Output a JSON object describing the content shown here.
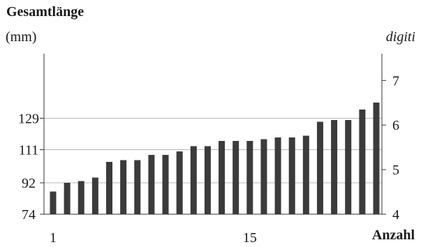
{
  "chart_data": {
    "type": "bar",
    "title": "Gesamtlänge",
    "ylabel": "(mm)",
    "y2label": "digiti",
    "xlabel": "Anzahl",
    "ylim": [
      74,
      166
    ],
    "y_ticks": [
      74,
      92,
      111,
      129
    ],
    "y2lim": [
      4,
      7.6
    ],
    "y2_ticks": [
      4,
      5,
      6,
      7
    ],
    "x_ticks": [
      1,
      15
    ],
    "categories": [
      1,
      2,
      3,
      4,
      5,
      6,
      7,
      8,
      9,
      10,
      11,
      12,
      13,
      14,
      15,
      16,
      17,
      18,
      19,
      20,
      21,
      22,
      23,
      24
    ],
    "values": [
      87,
      92,
      93,
      95,
      104,
      105,
      105,
      108,
      108,
      110,
      113,
      113,
      116,
      116,
      116,
      117,
      118,
      118,
      119,
      127,
      128,
      128,
      134,
      138
    ],
    "grid": true,
    "colors": {
      "bar": "#3b3b3b",
      "grid": "#b8b8b8",
      "axis": "#333333"
    }
  }
}
